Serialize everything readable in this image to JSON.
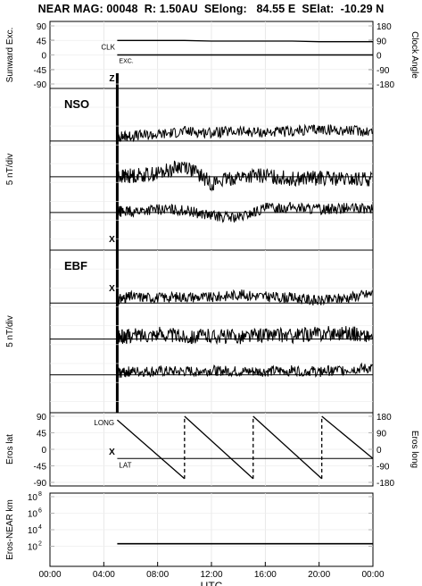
{
  "header": {
    "title": "NEAR MAG: 00048  R: 1.50AU  SElong:   84.55 E  SElat:  -10.29 N"
  },
  "chart_data": [
    {
      "panel": "sunward-excursion-clock-angle",
      "type": "line",
      "ylabel_left": "Sunward Exc.",
      "ylabel_right": "Clock Angle",
      "yticks_left": [
        "90",
        "45",
        "0",
        "-45",
        "-90"
      ],
      "yticks_right": [
        "180",
        "90",
        "0",
        "-90",
        "-180"
      ],
      "ylim_left": [
        -90,
        90
      ],
      "ylim_right": [
        -180,
        180
      ],
      "xlim_hours": [
        0,
        24
      ],
      "series": [
        {
          "name": "CLK",
          "x": [
            5,
            6,
            8,
            10,
            12,
            14,
            16,
            18,
            20,
            22,
            24
          ],
          "y": [
            90,
            90,
            90,
            90,
            86,
            86,
            86,
            86,
            82,
            82,
            82
          ]
        },
        {
          "name": "EXC.",
          "x": [
            5,
            8,
            12,
            16,
            20,
            24
          ],
          "y": [
            0,
            0,
            0,
            0,
            0,
            0
          ]
        }
      ],
      "markers": [
        "Z"
      ]
    },
    {
      "panel": "NSO",
      "type": "line",
      "label": "NSO",
      "ylabel": "5 nT/div",
      "xlim_hours": [
        0,
        24
      ],
      "baselines": 3,
      "markers": [
        "X"
      ],
      "series": [
        {
          "x": [
            5,
            6,
            8,
            10,
            12,
            14,
            16,
            18,
            20,
            22,
            24
          ],
          "y": [
            0.4,
            0.5,
            0.6,
            0.9,
            0.8,
            0.9,
            0.8,
            0.9,
            1.1,
            1.0,
            0.9
          ]
        },
        {
          "x": [
            5,
            6,
            8,
            10,
            12,
            14,
            16,
            18,
            20,
            22,
            24
          ],
          "y": [
            0.0,
            0.1,
            0.3,
            1.1,
            -0.6,
            0.0,
            0.1,
            -0.2,
            -0.1,
            -0.3,
            -0.2
          ]
        },
        {
          "x": [
            5,
            6,
            8,
            10,
            12,
            14,
            16,
            18,
            20,
            22,
            24
          ],
          "y": [
            0.1,
            0.1,
            0.3,
            0.2,
            -0.3,
            -0.5,
            0.4,
            0.5,
            0.3,
            0.4,
            0.3
          ]
        }
      ]
    },
    {
      "panel": "EBF",
      "type": "line",
      "label": "EBF",
      "ylabel": "5 nT/div",
      "xlim_hours": [
        0,
        24
      ],
      "baselines": 3,
      "markers": [
        "X"
      ],
      "series": [
        {
          "x": [
            5,
            6,
            8,
            10,
            12,
            14,
            16,
            18,
            20,
            22,
            24
          ],
          "y": [
            0.3,
            0.6,
            0.5,
            0.6,
            0.5,
            0.8,
            0.6,
            0.5,
            0.2,
            0.5,
            0.9
          ]
        },
        {
          "x": [
            5,
            6,
            8,
            10,
            12,
            14,
            16,
            18,
            20,
            22,
            24
          ],
          "y": [
            0.1,
            0.3,
            0.5,
            0.2,
            0.3,
            0.2,
            0.4,
            0.3,
            0.5,
            0.6,
            0.2
          ]
        },
        {
          "x": [
            5,
            6,
            8,
            10,
            12,
            14,
            16,
            18,
            20,
            22,
            24
          ],
          "y": [
            0.2,
            0.3,
            0.3,
            0.3,
            0.4,
            0.3,
            0.3,
            0.4,
            0.3,
            0.5,
            0.6
          ]
        }
      ]
    },
    {
      "panel": "eros-lat-long",
      "type": "line",
      "ylabel_left": "Eros lat",
      "ylabel_right": "Eros long",
      "yticks_left": [
        "90",
        "45",
        "0",
        "-45",
        "-90"
      ],
      "yticks_right": [
        "180",
        "90",
        "0",
        "-90",
        "-180"
      ],
      "ylim_left": [
        -90,
        90
      ],
      "ylim_right": [
        -180,
        180
      ],
      "xlim_hours": [
        0,
        24
      ],
      "markers": [
        "X"
      ],
      "series": [
        {
          "name": "LONG",
          "x": [
            5.0,
            10.0,
            10.0,
            15.1,
            15.1,
            20.2,
            20.2,
            24.0
          ],
          "y": [
            160,
            -160,
            180,
            -160,
            180,
            -160,
            180,
            -50
          ]
        },
        {
          "name": "LAT",
          "x": [
            5,
            24
          ],
          "y": [
            -25,
            -25
          ]
        }
      ]
    },
    {
      "panel": "eros-near-distance",
      "type": "line",
      "ylabel": "Eros-NEAR km",
      "yscale": "log",
      "yticks": [
        "10^8",
        "10^6",
        "10^4",
        "10^2"
      ],
      "ylim": [
        1,
        100000000
      ],
      "xlim_hours": [
        0,
        24
      ],
      "series": [
        {
          "x": [
            5,
            24
          ],
          "y": [
            200,
            200
          ]
        }
      ]
    }
  ],
  "xaxis": {
    "label": "UTC",
    "ticks": [
      "00:00",
      "04:00",
      "08:00",
      "12:00",
      "16:00",
      "20:00",
      "00:00"
    ]
  }
}
